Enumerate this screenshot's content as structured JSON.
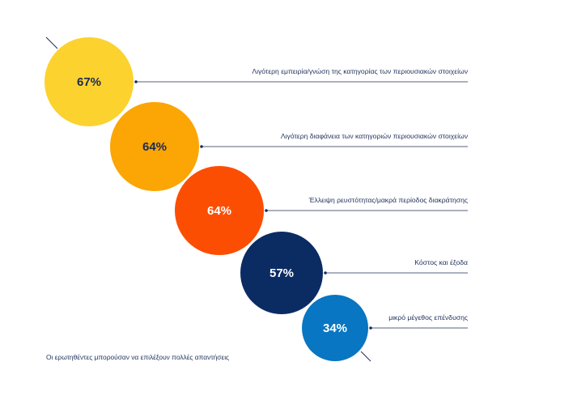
{
  "chart_data": {
    "type": "bubble",
    "categories": [
      "Λιγότερη εμπειρία/γνώση της κατηγορίας των περιουσιακών στοιχείων",
      "Λιγότερη διαφάνεια των κατηγοριών περιουσιακών στοιχείων",
      "Έλλειψη ρευστότητας/μακρά περίοδος διακράτησης",
      "Κόστος και έξοδα",
      "μικρό μέγεθος επένδυσης"
    ],
    "values": [
      67,
      64,
      64,
      57,
      34
    ],
    "value_labels": [
      "67%",
      "64%",
      "64%",
      "57%",
      "34%"
    ],
    "colors": [
      "#fcd22f",
      "#fba604",
      "#fc4e03",
      "#0b2b63",
      "#0876c2"
    ],
    "label_colors": [
      "#1b2b55",
      "#1b2b55",
      "#ffffff",
      "#ffffff",
      "#ffffff"
    ],
    "unit": "%"
  },
  "footnote": "Οι ερωτηθέντες μπορούσαν να επιλέξουν πολλές απαντήσεις"
}
